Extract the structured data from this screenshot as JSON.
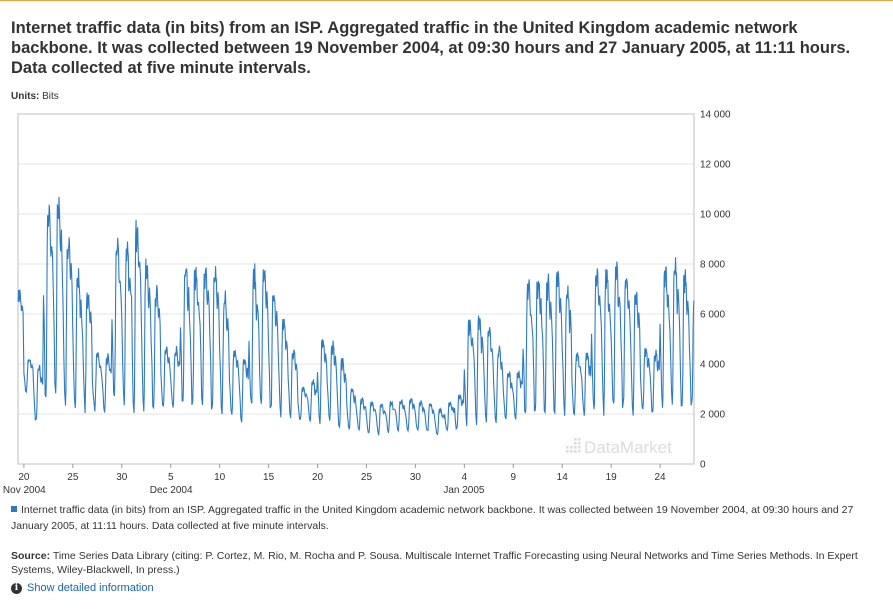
{
  "header": {
    "title": "Internet traffic data (in bits) from an ISP. Aggregated traffic in the United Kingdom academic network backbone. It was collected between 19 November 2004, at 09:30 hours and 27 January 2005, at 11:11 hours. Data collected at five minute intervals."
  },
  "units": {
    "label": "Units:",
    "value": "Bits"
  },
  "watermark": "DataMarket",
  "legend": {
    "text": "Internet traffic data (in bits) from an ISP. Aggregated traffic in the United Kingdom academic network backbone. It was collected between 19 November 2004, at 09:30 hours and 27 January 2005, at 11:11 hours. Data collected at five minute intervals."
  },
  "source": {
    "label": "Source:",
    "text": "Time Series Data Library (citing: P. Cortez, M. Rio, M. Rocha and P. Sousa. Multiscale Internet Traffic Forecasting using Neural Networks and Time Series Methods. In Expert Systems, Wiley-Blackwell, In press.)"
  },
  "details_link": "Show detailed information",
  "colors": {
    "series": "#2f7bbf",
    "grid": "#e6e6e6",
    "frame": "#bfbfbf"
  },
  "chart_data": {
    "type": "line",
    "series_name": "Internet traffic data (in bits) from an ISP. Aggregated traffic in the United Kingdom academic network backbone. It was collected between 19 November 2004, at 09:30 hours and 27 January 2005, at 11:11 hours. Data collected at five minute intervals.",
    "ylim": [
      0,
      14000
    ],
    "y_ticks": [
      0,
      2000,
      4000,
      6000,
      8000,
      10000,
      12000,
      14000
    ],
    "y_tick_labels": [
      "0",
      "2 000",
      "4 000",
      "6 000",
      "8 000",
      "10 000",
      "12 000",
      "14 000"
    ],
    "x_range": [
      "2004-11-19",
      "2005-01-27"
    ],
    "x_ticks": [
      {
        "date": "2004-11-20",
        "label": "20",
        "sub": "Nov 2004"
      },
      {
        "date": "2004-11-25",
        "label": "25",
        "sub": ""
      },
      {
        "date": "2004-11-30",
        "label": "30",
        "sub": ""
      },
      {
        "date": "2004-12-05",
        "label": "5",
        "sub": "Dec 2004"
      },
      {
        "date": "2004-12-10",
        "label": "10",
        "sub": ""
      },
      {
        "date": "2004-12-15",
        "label": "15",
        "sub": ""
      },
      {
        "date": "2004-12-20",
        "label": "20",
        "sub": ""
      },
      {
        "date": "2004-12-25",
        "label": "25",
        "sub": ""
      },
      {
        "date": "2004-12-30",
        "label": "30",
        "sub": ""
      },
      {
        "date": "2005-01-04",
        "label": "4",
        "sub": "Jan 2005"
      },
      {
        "date": "2005-01-09",
        "label": "9",
        "sub": ""
      },
      {
        "date": "2005-01-14",
        "label": "14",
        "sub": ""
      },
      {
        "date": "2005-01-19",
        "label": "19",
        "sub": ""
      },
      {
        "date": "2005-01-24",
        "label": "24",
        "sub": ""
      }
    ],
    "daily_peaks": [
      {
        "date": "2004-11-19",
        "peak": 6900
      },
      {
        "date": "2004-11-20",
        "peak": 4200
      },
      {
        "date": "2004-11-21",
        "peak": 3900
      },
      {
        "date": "2004-11-22",
        "peak": 10500
      },
      {
        "date": "2004-11-23",
        "peak": 10600
      },
      {
        "date": "2004-11-24",
        "peak": 9000
      },
      {
        "date": "2004-11-25",
        "peak": 7600
      },
      {
        "date": "2004-11-26",
        "peak": 6900
      },
      {
        "date": "2004-11-27",
        "peak": 4400
      },
      {
        "date": "2004-11-28",
        "peak": 4300
      },
      {
        "date": "2004-11-29",
        "peak": 9000
      },
      {
        "date": "2004-11-30",
        "peak": 8600
      },
      {
        "date": "2004-12-01",
        "peak": 9600
      },
      {
        "date": "2004-12-02",
        "peak": 8100
      },
      {
        "date": "2004-12-03",
        "peak": 7000
      },
      {
        "date": "2004-12-04",
        "peak": 4600
      },
      {
        "date": "2004-12-05",
        "peak": 4600
      },
      {
        "date": "2004-12-06",
        "peak": 7900
      },
      {
        "date": "2004-12-07",
        "peak": 7800
      },
      {
        "date": "2004-12-08",
        "peak": 8000
      },
      {
        "date": "2004-12-09",
        "peak": 7700
      },
      {
        "date": "2004-12-10",
        "peak": 6700
      },
      {
        "date": "2004-12-11",
        "peak": 4500
      },
      {
        "date": "2004-12-12",
        "peak": 4300
      },
      {
        "date": "2004-12-13",
        "peak": 7700
      },
      {
        "date": "2004-12-14",
        "peak": 7700
      },
      {
        "date": "2004-12-15",
        "peak": 6900
      },
      {
        "date": "2004-12-16",
        "peak": 5800
      },
      {
        "date": "2004-12-17",
        "peak": 4600
      },
      {
        "date": "2004-12-18",
        "peak": 3100
      },
      {
        "date": "2004-12-19",
        "peak": 3300
      },
      {
        "date": "2004-12-20",
        "peak": 5000
      },
      {
        "date": "2004-12-21",
        "peak": 4800
      },
      {
        "date": "2004-12-22",
        "peak": 4200
      },
      {
        "date": "2004-12-23",
        "peak": 3000
      },
      {
        "date": "2004-12-24",
        "peak": 2600
      },
      {
        "date": "2004-12-25",
        "peak": 2500
      },
      {
        "date": "2004-12-26",
        "peak": 2400
      },
      {
        "date": "2004-12-27",
        "peak": 2500
      },
      {
        "date": "2004-12-28",
        "peak": 2600
      },
      {
        "date": "2004-12-29",
        "peak": 2600
      },
      {
        "date": "2004-12-30",
        "peak": 2500
      },
      {
        "date": "2004-12-31",
        "peak": 2400
      },
      {
        "date": "2005-01-01",
        "peak": 2200
      },
      {
        "date": "2005-01-02",
        "peak": 2500
      },
      {
        "date": "2005-01-03",
        "peak": 2800
      },
      {
        "date": "2005-01-04",
        "peak": 5800
      },
      {
        "date": "2005-01-05",
        "peak": 5900
      },
      {
        "date": "2005-01-06",
        "peak": 5400
      },
      {
        "date": "2005-01-07",
        "peak": 4600
      },
      {
        "date": "2005-01-08",
        "peak": 3700
      },
      {
        "date": "2005-01-09",
        "peak": 3700
      },
      {
        "date": "2005-01-10",
        "peak": 7300
      },
      {
        "date": "2005-01-11",
        "peak": 7500
      },
      {
        "date": "2005-01-12",
        "peak": 7400
      },
      {
        "date": "2005-01-13",
        "peak": 7600
      },
      {
        "date": "2005-01-14",
        "peak": 7000
      },
      {
        "date": "2005-01-15",
        "peak": 4500
      },
      {
        "date": "2005-01-16",
        "peak": 4400
      },
      {
        "date": "2005-01-17",
        "peak": 7700
      },
      {
        "date": "2005-01-18",
        "peak": 7800
      },
      {
        "date": "2005-01-19",
        "peak": 7800
      },
      {
        "date": "2005-01-20",
        "peak": 7500
      },
      {
        "date": "2005-01-21",
        "peak": 6900
      },
      {
        "date": "2005-01-22",
        "peak": 4600
      },
      {
        "date": "2005-01-23",
        "peak": 4500
      },
      {
        "date": "2005-01-24",
        "peak": 7800
      },
      {
        "date": "2005-01-25",
        "peak": 8000
      },
      {
        "date": "2005-01-26",
        "peak": 7700
      },
      {
        "date": "2005-01-27",
        "peak": 6500
      }
    ],
    "daily_troughs": [
      {
        "date": "2004-11-19",
        "trough": 4000
      },
      {
        "date": "2004-11-20",
        "trough": 2900
      },
      {
        "date": "2004-11-21",
        "trough": 1700
      },
      {
        "date": "2004-11-22",
        "trough": 2800
      },
      {
        "date": "2004-11-23",
        "trough": 2700
      },
      {
        "date": "2004-11-24",
        "trough": 2600
      },
      {
        "date": "2004-11-25",
        "trough": 2500
      },
      {
        "date": "2004-11-26",
        "trough": 2300
      },
      {
        "date": "2004-11-27",
        "trough": 2200
      },
      {
        "date": "2004-11-28",
        "trough": 2100
      },
      {
        "date": "2004-11-29",
        "trough": 2500
      },
      {
        "date": "2004-11-30",
        "trough": 2500
      },
      {
        "date": "2004-12-01",
        "trough": 2400
      },
      {
        "date": "2004-12-02",
        "trough": 2400
      },
      {
        "date": "2004-12-03",
        "trough": 2300
      },
      {
        "date": "2004-12-04",
        "trough": 2300
      },
      {
        "date": "2004-12-05",
        "trough": 2200
      },
      {
        "date": "2004-12-06",
        "trough": 2400
      },
      {
        "date": "2004-12-07",
        "trough": 2400
      },
      {
        "date": "2004-12-08",
        "trough": 2300
      },
      {
        "date": "2004-12-09",
        "trough": 2200
      },
      {
        "date": "2004-12-10",
        "trough": 2200
      },
      {
        "date": "2004-12-11",
        "trough": 2100
      },
      {
        "date": "2004-12-12",
        "trough": 1800
      },
      {
        "date": "2004-12-13",
        "trough": 2200
      },
      {
        "date": "2004-12-14",
        "trough": 2200
      },
      {
        "date": "2004-12-15",
        "trough": 2100
      },
      {
        "date": "2004-12-16",
        "trough": 2000
      },
      {
        "date": "2004-12-17",
        "trough": 1900
      },
      {
        "date": "2004-12-18",
        "trough": 1800
      },
      {
        "date": "2004-12-19",
        "trough": 1700
      },
      {
        "date": "2004-12-20",
        "trough": 1700
      },
      {
        "date": "2004-12-21",
        "trough": 1600
      },
      {
        "date": "2004-12-22",
        "trough": 1500
      },
      {
        "date": "2004-12-23",
        "trough": 1400
      },
      {
        "date": "2004-12-24",
        "trough": 1400
      },
      {
        "date": "2004-12-25",
        "trough": 1200
      },
      {
        "date": "2004-12-26",
        "trough": 1200
      },
      {
        "date": "2004-12-27",
        "trough": 1300
      },
      {
        "date": "2004-12-28",
        "trough": 1300
      },
      {
        "date": "2004-12-29",
        "trough": 1300
      },
      {
        "date": "2004-12-30",
        "trough": 1300
      },
      {
        "date": "2004-12-31",
        "trough": 1300
      },
      {
        "date": "2005-01-01",
        "trough": 1200
      },
      {
        "date": "2005-01-02",
        "trough": 1300
      },
      {
        "date": "2005-01-03",
        "trough": 1400
      },
      {
        "date": "2005-01-04",
        "trough": 1700
      },
      {
        "date": "2005-01-05",
        "trough": 1800
      },
      {
        "date": "2005-01-06",
        "trough": 1800
      },
      {
        "date": "2005-01-07",
        "trough": 1800
      },
      {
        "date": "2005-01-08",
        "trough": 1800
      },
      {
        "date": "2005-01-09",
        "trough": 1800
      },
      {
        "date": "2005-01-10",
        "trough": 2000
      },
      {
        "date": "2005-01-11",
        "trough": 2100
      },
      {
        "date": "2005-01-12",
        "trough": 2100
      },
      {
        "date": "2005-01-13",
        "trough": 2100
      },
      {
        "date": "2005-01-14",
        "trough": 2100
      },
      {
        "date": "2005-01-15",
        "trough": 2000
      },
      {
        "date": "2005-01-16",
        "trough": 2000
      },
      {
        "date": "2005-01-17",
        "trough": 2200
      },
      {
        "date": "2005-01-18",
        "trough": 2200
      },
      {
        "date": "2005-01-19",
        "trough": 2200
      },
      {
        "date": "2005-01-20",
        "trough": 2200
      },
      {
        "date": "2005-01-21",
        "trough": 2200
      },
      {
        "date": "2005-01-22",
        "trough": 2200
      },
      {
        "date": "2005-01-23",
        "trough": 2100
      },
      {
        "date": "2005-01-24",
        "trough": 2300
      },
      {
        "date": "2005-01-25",
        "trough": 2300
      },
      {
        "date": "2005-01-26",
        "trough": 2300
      },
      {
        "date": "2005-01-27",
        "trough": 2300
      }
    ],
    "grid": true,
    "legend_position": "bottom"
  }
}
